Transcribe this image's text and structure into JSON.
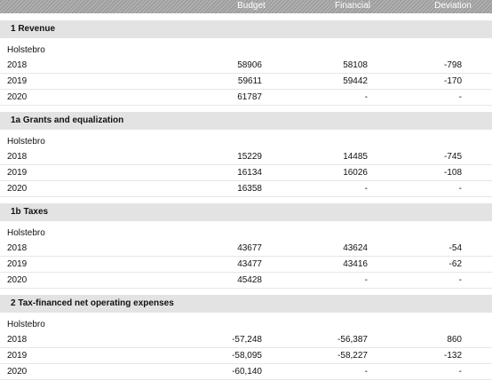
{
  "header": {
    "budget": "Budget",
    "financial": "Financial",
    "deviation": "Deviation"
  },
  "sections": [
    {
      "title": "1 Revenue",
      "group": "Holstebro",
      "rows": [
        {
          "year": "2018",
          "budget": "58906",
          "financial": "58108",
          "deviation": "-798"
        },
        {
          "year": "2019",
          "budget": "59611",
          "financial": "59442",
          "deviation": "-170"
        },
        {
          "year": "2020",
          "budget": "61787",
          "financial": "-",
          "deviation": "-"
        }
      ]
    },
    {
      "title": "1a Grants and equalization",
      "group": "Holstebro",
      "rows": [
        {
          "year": "2018",
          "budget": "15229",
          "financial": "14485",
          "deviation": "-745"
        },
        {
          "year": "2019",
          "budget": "16134",
          "financial": "16026",
          "deviation": "-108"
        },
        {
          "year": "2020",
          "budget": "16358",
          "financial": "-",
          "deviation": "-"
        }
      ]
    },
    {
      "title": "1b Taxes",
      "group": "Holstebro",
      "rows": [
        {
          "year": "2018",
          "budget": "43677",
          "financial": "43624",
          "deviation": "-54"
        },
        {
          "year": "2019",
          "budget": "43477",
          "financial": "43416",
          "deviation": "-62"
        },
        {
          "year": "2020",
          "budget": "45428",
          "financial": "-",
          "deviation": "-"
        }
      ]
    },
    {
      "title": "2 Tax-financed net operating expenses",
      "group": "Holstebro",
      "rows": [
        {
          "year": "2018",
          "budget": "-57,248",
          "financial": "-56,387",
          "deviation": "860"
        },
        {
          "year": "2019",
          "budget": "-58,095",
          "financial": "-58,227",
          "deviation": "-132"
        },
        {
          "year": "2020",
          "budget": "-60,140",
          "financial": "-",
          "deviation": "-"
        }
      ]
    }
  ]
}
